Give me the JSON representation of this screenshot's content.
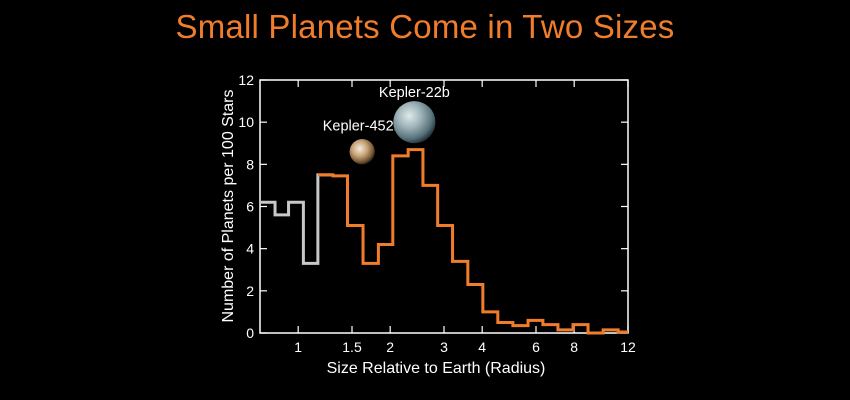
{
  "colors": {
    "background": "#000000",
    "title": "#f07d2b",
    "orange_series": "#f07d2b",
    "gray_series": "#c8c8c8",
    "axes": "#ffffff"
  },
  "chart_data": {
    "type": "step-histogram",
    "title": "Small Planets Come in Two Sizes",
    "xlabel": "Size Relative to Earth (Radius)",
    "ylabel": "Number of Planets per 100 Stars",
    "x_scale": "log",
    "xlim": [
      0.75,
      12
    ],
    "ylim": [
      0,
      12
    ],
    "yticks": [
      0,
      2,
      4,
      6,
      8,
      10,
      12
    ],
    "xticks": [
      1,
      1.5,
      2,
      3,
      4,
      6,
      8,
      12
    ],
    "xtick_labels": [
      "1",
      "1.5",
      "2",
      "3",
      "4",
      "6",
      "8",
      "12"
    ],
    "grid": false,
    "series": [
      {
        "color": "gray",
        "bins": [
          {
            "x0": 0.75,
            "x1": 0.84,
            "y": 6.2
          },
          {
            "x0": 0.84,
            "x1": 0.93,
            "y": 5.6
          },
          {
            "x0": 0.93,
            "x1": 1.04,
            "y": 6.2
          },
          {
            "x0": 1.04,
            "x1": 1.16,
            "y": 3.3
          },
          {
            "x0": 1.16,
            "x1": 1.3,
            "y": 7.5
          }
        ]
      },
      {
        "color": "orange",
        "bins": [
          {
            "x0": 1.16,
            "x1": 1.3,
            "y": 7.5
          },
          {
            "x0": 1.3,
            "x1": 1.45,
            "y": 7.45
          },
          {
            "x0": 1.45,
            "x1": 1.63,
            "y": 5.1
          },
          {
            "x0": 1.63,
            "x1": 1.83,
            "y": 3.3
          },
          {
            "x0": 1.83,
            "x1": 2.04,
            "y": 4.2
          },
          {
            "x0": 2.04,
            "x1": 2.29,
            "y": 8.4
          },
          {
            "x0": 2.29,
            "x1": 2.56,
            "y": 8.7
          },
          {
            "x0": 2.56,
            "x1": 2.86,
            "y": 7.0
          },
          {
            "x0": 2.86,
            "x1": 3.2,
            "y": 5.1
          },
          {
            "x0": 3.2,
            "x1": 3.59,
            "y": 3.4
          },
          {
            "x0": 3.59,
            "x1": 4.02,
            "y": 2.3
          },
          {
            "x0": 4.02,
            "x1": 4.5,
            "y": 1.0
          },
          {
            "x0": 4.5,
            "x1": 5.04,
            "y": 0.5
          },
          {
            "x0": 5.04,
            "x1": 5.65,
            "y": 0.35
          },
          {
            "x0": 5.65,
            "x1": 6.32,
            "y": 0.6
          },
          {
            "x0": 6.32,
            "x1": 7.08,
            "y": 0.4
          },
          {
            "x0": 7.08,
            "x1": 7.93,
            "y": 0.15
          },
          {
            "x0": 7.93,
            "x1": 8.88,
            "y": 0.4
          },
          {
            "x0": 8.88,
            "x1": 9.95,
            "y": 0.0
          },
          {
            "x0": 9.95,
            "x1": 11.14,
            "y": 0.15
          },
          {
            "x0": 11.14,
            "x1": 12.0,
            "y": 0.05
          }
        ]
      }
    ],
    "annotations": [
      {
        "text": "Kepler-452b",
        "x": 1.62,
        "y": 9.6,
        "planet_x": 1.62,
        "planet_y": 8.6,
        "planet_r": 0.6
      },
      {
        "text": "Kepler-22b",
        "x": 2.4,
        "y": 11.2,
        "planet_x": 2.4,
        "planet_y": 10.0,
        "planet_r": 1.0
      }
    ]
  }
}
